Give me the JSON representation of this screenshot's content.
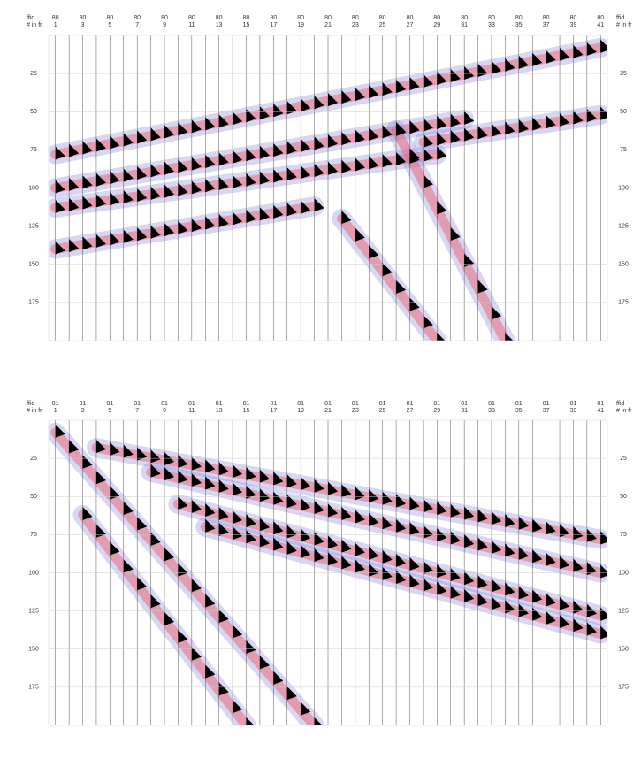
{
  "chart_data": [
    {
      "type": "wiggle",
      "header_labels": [
        "ffid",
        "# in fr"
      ],
      "ffid": [
        80,
        80,
        80,
        80,
        80,
        80,
        80,
        80,
        80,
        80,
        80,
        80,
        80,
        80,
        80,
        80,
        80,
        80,
        80,
        80,
        80
      ],
      "channels": [
        1,
        3,
        5,
        7,
        9,
        11,
        13,
        15,
        17,
        19,
        21,
        23,
        25,
        27,
        29,
        31,
        33,
        35,
        37,
        39,
        41
      ],
      "ylim": [
        0,
        200
      ],
      "yticks": [
        25,
        50,
        75,
        100,
        125,
        150,
        175
      ],
      "grid": true
    },
    {
      "type": "wiggle",
      "header_labels": [
        "ffid",
        "# in fr"
      ],
      "ffid": [
        81,
        81,
        81,
        81,
        81,
        81,
        81,
        81,
        81,
        81,
        81,
        81,
        81,
        81,
        81,
        81,
        81,
        81,
        81,
        81,
        81
      ],
      "channels": [
        1,
        3,
        5,
        7,
        9,
        11,
        13,
        15,
        17,
        19,
        21,
        23,
        25,
        27,
        29,
        31,
        33,
        35,
        37,
        39,
        41
      ],
      "ylim": [
        0,
        200
      ],
      "yticks": [
        25,
        50,
        75,
        100,
        125,
        150,
        175
      ],
      "grid": true
    }
  ]
}
